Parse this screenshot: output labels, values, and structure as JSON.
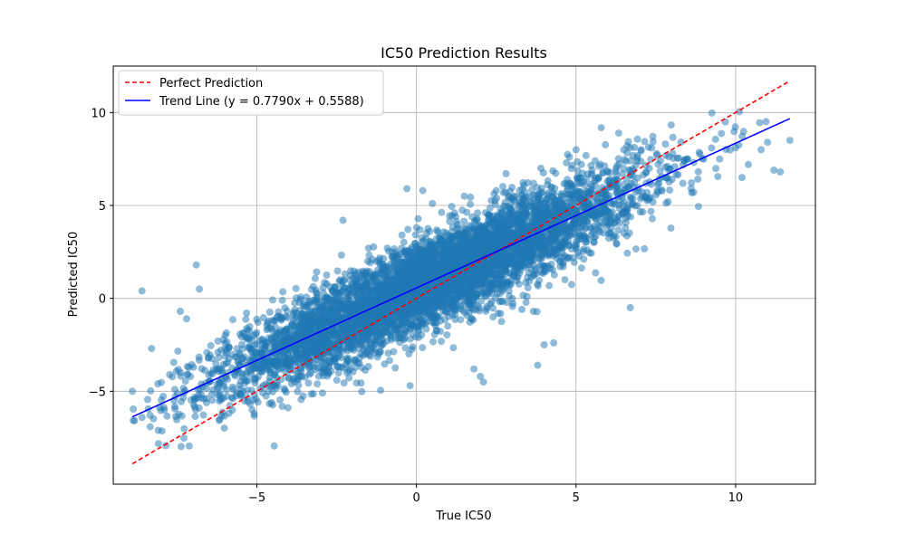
{
  "chart_data": {
    "type": "scatter",
    "title": "IC50 Prediction Results",
    "xlabel": "True IC50",
    "ylabel": "Predicted IC50",
    "xlim": [
      -9.5,
      12.5
    ],
    "ylim": [
      -10,
      12.5
    ],
    "xticks": [
      -5,
      0,
      5,
      10
    ],
    "yticks": [
      -5,
      0,
      5,
      10
    ],
    "xtick_labels": [
      "−5",
      "0",
      "5",
      "10"
    ],
    "ytick_labels": [
      "−5",
      "0",
      "5",
      "10"
    ],
    "grid": true,
    "legend": {
      "placement": "top-left",
      "entries": [
        "Perfect Prediction",
        "Trend Line (y = 0.7790x + 0.5588)"
      ]
    },
    "series": [
      {
        "name": "Perfect Prediction",
        "kind": "line",
        "style": "dashed",
        "color": "#ff0000",
        "x": [
          -8.9,
          11.7
        ],
        "y": [
          -8.9,
          11.7
        ]
      },
      {
        "name": "Trend Line (y = 0.7790x + 0.5588)",
        "kind": "line",
        "style": "solid",
        "color": "#0000ff",
        "slope": 0.779,
        "intercept": 0.5588,
        "x": [
          -8.9,
          11.7
        ],
        "y": [
          -6.374,
          9.673
        ]
      },
      {
        "kind": "scatter",
        "color": "#1f77b4",
        "alpha": 0.5,
        "x_range": [
          -8.9,
          11.7
        ],
        "x_distribution": {
          "mean": 0.5,
          "sd": 3.2
        },
        "residual_sd": 1.2,
        "count_approx": 6000,
        "x": [
          -8.9,
          -8.6,
          -8.3,
          -8.1,
          -7.9,
          -7.6,
          -6.9,
          -6.8,
          -7.2,
          -7.4,
          -0.3,
          0.2,
          0.5,
          1.5,
          2.5,
          3.8,
          3.9,
          4.7,
          5.0,
          5.6,
          6.5,
          6.6,
          7.8,
          8.5,
          9.0,
          9.5,
          10.0,
          10.2,
          10.4,
          10.8,
          11.0,
          11.2,
          11.4,
          11.7,
          -0.2,
          -2.3,
          3.8,
          4.0,
          6.7,
          2.0,
          2.1,
          4.3,
          1.8
        ],
        "y": [
          -5.0,
          0.4,
          -2.7,
          -4.6,
          -6.0,
          -5.5,
          1.8,
          0.5,
          -1.1,
          -0.7,
          5.9,
          5.8,
          5.1,
          5.5,
          5.8,
          5.4,
          7.0,
          7.3,
          8.0,
          7.4,
          8.0,
          8.2,
          8.3,
          7.5,
          7.5,
          7.5,
          8.1,
          6.5,
          7.2,
          8.0,
          8.4,
          6.9,
          6.8,
          8.5,
          -4.7,
          4.2,
          -3.6,
          -2.5,
          -0.5,
          -4.2,
          -4.5,
          -2.4,
          -3.8
        ]
      }
    ]
  }
}
